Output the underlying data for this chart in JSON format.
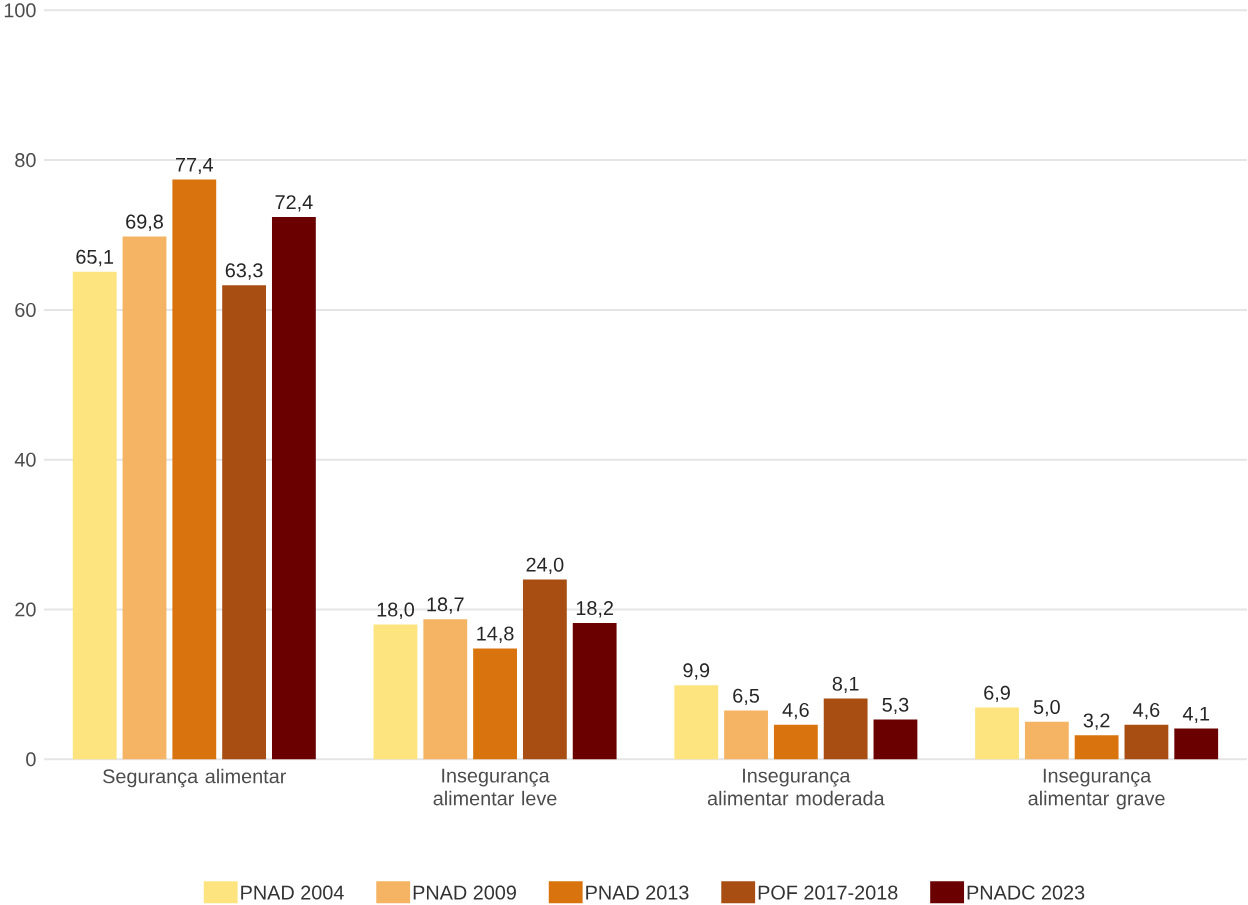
{
  "chart_data": {
    "type": "bar",
    "categories": [
      "Segurança alimentar",
      "Insegurança alimentar leve",
      "Insegurança alimentar moderada",
      "Insegurança alimentar grave"
    ],
    "series": [
      {
        "name": "PNAD 2004",
        "color": "#fde47f",
        "values": [
          65.1,
          18.0,
          9.9,
          6.9
        ],
        "value_labels": [
          "65,1",
          "18,0",
          "9,9",
          "6,9"
        ]
      },
      {
        "name": "PNAD 2009",
        "color": "#f4b463",
        "values": [
          69.8,
          18.7,
          6.5,
          5.0
        ],
        "value_labels": [
          "69,8",
          "18,7",
          "6,5",
          "5,0"
        ]
      },
      {
        "name": "PNAD 2013",
        "color": "#d9730d",
        "values": [
          77.4,
          14.8,
          4.6,
          3.2
        ],
        "value_labels": [
          "77,4",
          "14,8",
          "4,6",
          "3,2"
        ]
      },
      {
        "name": "POF 2017-2018",
        "color": "#a84e12",
        "values": [
          63.3,
          24.0,
          8.1,
          4.6
        ],
        "value_labels": [
          "63,3",
          "24,0",
          "8,1",
          "4,6"
        ]
      },
      {
        "name": "PNADC 2023",
        "color": "#6b0000",
        "values": [
          72.4,
          18.2,
          5.3,
          4.1
        ],
        "value_labels": [
          "72,4",
          "18,2",
          "5,3",
          "4,1"
        ]
      }
    ],
    "ylim": [
      0,
      100
    ],
    "yticks": [
      0,
      20,
      40,
      60,
      80,
      100
    ],
    "grid": "y",
    "legend": "bottom"
  }
}
